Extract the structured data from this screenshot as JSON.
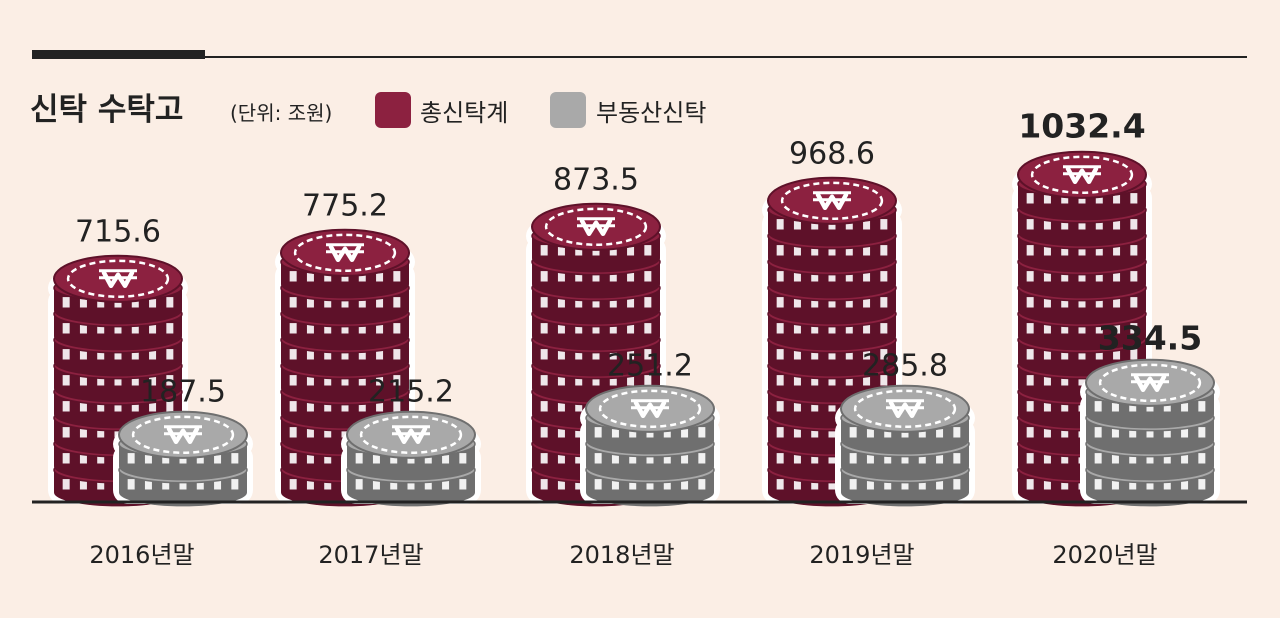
{
  "chart_data": {
    "type": "bar",
    "title": "신탁 수탁고",
    "unit": "(단위: 조원)",
    "categories": [
      "2016년말",
      "2017년말",
      "2018년말",
      "2019년말",
      "2020년말"
    ],
    "series": [
      {
        "name": "총신탁계",
        "values": [
          715.6,
          775.2,
          873.5,
          968.6,
          1032.4
        ],
        "color": "#8c2140"
      },
      {
        "name": "부동산신탁",
        "values": [
          187.5,
          215.2,
          251.2,
          285.8,
          334.5
        ],
        "color": "#a9a9a9"
      }
    ],
    "legend_position": "top",
    "icon": "won-coin-icon"
  }
}
